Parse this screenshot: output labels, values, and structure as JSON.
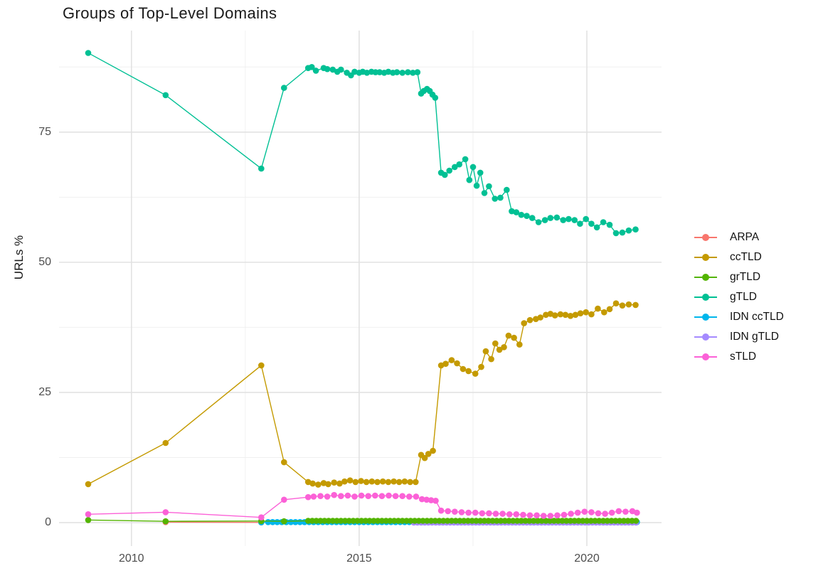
{
  "title": "Groups of Top-Level Domains",
  "legend": {
    "items": [
      {
        "label": "ARPA",
        "color": "#F8766D"
      },
      {
        "label": "ccTLD",
        "color": "#C49A00"
      },
      {
        "label": "grTLD",
        "color": "#53B400"
      },
      {
        "label": "gTLD",
        "color": "#00C094"
      },
      {
        "label": "IDN ccTLD",
        "color": "#00B6EB"
      },
      {
        "label": "IDN gTLD",
        "color": "#A58AFF"
      },
      {
        "label": "sTLD",
        "color": "#FB61D7"
      }
    ]
  },
  "colors": {
    "grid_major": "#E2E2E2",
    "grid_minor": "#F0F0F0",
    "axis_text": "#4d4d4d",
    "title_text": "#1a1a1a"
  },
  "chart_data": {
    "type": "line",
    "title": "Groups of Top-Level Domains",
    "xlabel": "",
    "ylabel": "URLs %",
    "xlim": [
      2008.41,
      2021.64
    ],
    "ylim": [
      -4.5,
      94.5
    ],
    "x_major_ticks": [
      2010,
      2015,
      2020
    ],
    "x_minor_gridlines": [
      2012.5,
      2017.5
    ],
    "y_major_ticks": [
      0,
      25,
      50,
      75
    ],
    "y_minor_gridlines": [
      12.5,
      37.5,
      62.5,
      87.5
    ],
    "grid": true,
    "legend_position": "right",
    "legend_order": [
      "ARPA",
      "ccTLD",
      "grTLD",
      "gTLD",
      "IDN ccTLD",
      "IDN gTLD",
      "sTLD"
    ],
    "series": [
      {
        "name": "ARPA",
        "color": "#F8766D",
        "points": [
          [
            2010.75,
            0.1
          ],
          [
            2012.85,
            0.05
          ]
        ]
      },
      {
        "name": "IDN ccTLD",
        "color": "#00B6EB",
        "points": [
          [
            2012.85,
            0.05
          ]
        ],
        "flat": {
          "from": 2013.0,
          "to": 2021.1,
          "step": 0.1,
          "value": 0.1
        }
      },
      {
        "name": "IDN gTLD",
        "color": "#A58AFF",
        "points": [],
        "flat": {
          "from": 2016.2,
          "to": 2021.1,
          "step": 0.08,
          "value": 0.0
        }
      },
      {
        "name": "grTLD",
        "color": "#53B400",
        "points": [
          [
            2009.05,
            0.5
          ],
          [
            2010.75,
            0.25
          ],
          [
            2012.85,
            0.3
          ],
          [
            2013.35,
            0.25
          ]
        ],
        "flat": {
          "from": 2013.88,
          "to": 2021.1,
          "step": 0.09,
          "value": 0.35
        }
      },
      {
        "name": "gTLD",
        "color": "#00C094",
        "points": [
          [
            2009.05,
            90.2
          ],
          [
            2010.75,
            82.1
          ],
          [
            2012.85,
            68.0
          ],
          [
            2013.35,
            83.5
          ],
          [
            2013.88,
            87.3
          ],
          [
            2013.96,
            87.5
          ],
          [
            2014.05,
            86.8
          ],
          [
            2014.22,
            87.3
          ],
          [
            2014.3,
            87.1
          ],
          [
            2014.42,
            87.0
          ],
          [
            2014.52,
            86.6
          ],
          [
            2014.6,
            87.0
          ],
          [
            2014.73,
            86.4
          ],
          [
            2014.82,
            85.9
          ],
          [
            2014.9,
            86.6
          ],
          [
            2015.0,
            86.4
          ],
          [
            2015.08,
            86.6
          ],
          [
            2015.17,
            86.4
          ],
          [
            2015.27,
            86.6
          ],
          [
            2015.36,
            86.5
          ],
          [
            2015.45,
            86.5
          ],
          [
            2015.55,
            86.4
          ],
          [
            2015.64,
            86.6
          ],
          [
            2015.74,
            86.4
          ],
          [
            2015.83,
            86.5
          ],
          [
            2015.95,
            86.4
          ],
          [
            2016.07,
            86.5
          ],
          [
            2016.18,
            86.4
          ],
          [
            2016.28,
            86.5
          ],
          [
            2016.36,
            82.4
          ],
          [
            2016.42,
            82.9
          ],
          [
            2016.49,
            83.3
          ],
          [
            2016.55,
            82.9
          ],
          [
            2016.61,
            82.2
          ],
          [
            2016.67,
            81.6
          ],
          [
            2016.8,
            67.2
          ],
          [
            2016.88,
            66.8
          ],
          [
            2016.98,
            67.6
          ],
          [
            2017.1,
            68.3
          ],
          [
            2017.2,
            68.8
          ],
          [
            2017.33,
            69.8
          ],
          [
            2017.42,
            65.8
          ],
          [
            2017.5,
            68.3
          ],
          [
            2017.58,
            64.7
          ],
          [
            2017.66,
            67.2
          ],
          [
            2017.75,
            63.3
          ],
          [
            2017.85,
            64.6
          ],
          [
            2017.98,
            62.2
          ],
          [
            2018.1,
            62.4
          ],
          [
            2018.24,
            63.9
          ],
          [
            2018.35,
            59.8
          ],
          [
            2018.45,
            59.6
          ],
          [
            2018.56,
            59.1
          ],
          [
            2018.68,
            58.9
          ],
          [
            2018.8,
            58.5
          ],
          [
            2018.94,
            57.7
          ],
          [
            2019.08,
            58.1
          ],
          [
            2019.2,
            58.5
          ],
          [
            2019.34,
            58.6
          ],
          [
            2019.48,
            58.1
          ],
          [
            2019.6,
            58.3
          ],
          [
            2019.73,
            58.1
          ],
          [
            2019.85,
            57.4
          ],
          [
            2019.98,
            58.3
          ],
          [
            2020.1,
            57.4
          ],
          [
            2020.22,
            56.7
          ],
          [
            2020.36,
            57.7
          ],
          [
            2020.5,
            57.2
          ],
          [
            2020.64,
            55.6
          ],
          [
            2020.78,
            55.7
          ],
          [
            2020.92,
            56.1
          ],
          [
            2021.07,
            56.3
          ]
        ]
      },
      {
        "name": "ccTLD",
        "color": "#C49A00",
        "points": [
          [
            2009.05,
            7.4
          ],
          [
            2010.75,
            15.3
          ],
          [
            2012.85,
            30.2
          ],
          [
            2013.35,
            11.6
          ],
          [
            2013.88,
            7.8
          ],
          [
            2013.98,
            7.5
          ],
          [
            2014.1,
            7.3
          ],
          [
            2014.22,
            7.6
          ],
          [
            2014.32,
            7.4
          ],
          [
            2014.45,
            7.7
          ],
          [
            2014.57,
            7.5
          ],
          [
            2014.68,
            7.9
          ],
          [
            2014.8,
            8.1
          ],
          [
            2014.92,
            7.8
          ],
          [
            2015.04,
            8.0
          ],
          [
            2015.16,
            7.8
          ],
          [
            2015.28,
            7.9
          ],
          [
            2015.4,
            7.8
          ],
          [
            2015.52,
            7.9
          ],
          [
            2015.64,
            7.8
          ],
          [
            2015.76,
            7.9
          ],
          [
            2015.88,
            7.8
          ],
          [
            2016.0,
            7.9
          ],
          [
            2016.12,
            7.8
          ],
          [
            2016.24,
            7.8
          ],
          [
            2016.36,
            13.0
          ],
          [
            2016.44,
            12.4
          ],
          [
            2016.52,
            13.2
          ],
          [
            2016.62,
            13.8
          ],
          [
            2016.8,
            30.2
          ],
          [
            2016.9,
            30.5
          ],
          [
            2017.03,
            31.2
          ],
          [
            2017.15,
            30.6
          ],
          [
            2017.28,
            29.5
          ],
          [
            2017.4,
            29.1
          ],
          [
            2017.55,
            28.6
          ],
          [
            2017.68,
            29.9
          ],
          [
            2017.78,
            32.9
          ],
          [
            2017.9,
            31.4
          ],
          [
            2017.99,
            34.4
          ],
          [
            2018.08,
            33.2
          ],
          [
            2018.18,
            33.7
          ],
          [
            2018.28,
            35.9
          ],
          [
            2018.4,
            35.5
          ],
          [
            2018.52,
            34.2
          ],
          [
            2018.62,
            38.3
          ],
          [
            2018.75,
            38.9
          ],
          [
            2018.88,
            39.1
          ],
          [
            2018.98,
            39.4
          ],
          [
            2019.1,
            39.9
          ],
          [
            2019.2,
            40.1
          ],
          [
            2019.3,
            39.8
          ],
          [
            2019.42,
            40.0
          ],
          [
            2019.53,
            39.9
          ],
          [
            2019.64,
            39.7
          ],
          [
            2019.75,
            39.9
          ],
          [
            2019.86,
            40.2
          ],
          [
            2019.98,
            40.4
          ],
          [
            2020.1,
            40.0
          ],
          [
            2020.24,
            41.1
          ],
          [
            2020.38,
            40.4
          ],
          [
            2020.5,
            41.0
          ],
          [
            2020.64,
            42.1
          ],
          [
            2020.78,
            41.7
          ],
          [
            2020.92,
            41.9
          ],
          [
            2021.07,
            41.8
          ]
        ]
      },
      {
        "name": "sTLD",
        "color": "#FB61D7",
        "points": [
          [
            2009.05,
            1.6
          ],
          [
            2010.75,
            2.0
          ],
          [
            2012.85,
            1.0
          ],
          [
            2013.35,
            4.4
          ],
          [
            2013.88,
            4.9
          ],
          [
            2014.0,
            5.0
          ],
          [
            2014.15,
            5.1
          ],
          [
            2014.3,
            5.0
          ],
          [
            2014.45,
            5.3
          ],
          [
            2014.6,
            5.1
          ],
          [
            2014.75,
            5.2
          ],
          [
            2014.9,
            5.0
          ],
          [
            2015.05,
            5.2
          ],
          [
            2015.2,
            5.1
          ],
          [
            2015.35,
            5.2
          ],
          [
            2015.5,
            5.1
          ],
          [
            2015.65,
            5.2
          ],
          [
            2015.8,
            5.1
          ],
          [
            2015.95,
            5.1
          ],
          [
            2016.1,
            5.0
          ],
          [
            2016.25,
            5.0
          ],
          [
            2016.38,
            4.5
          ],
          [
            2016.48,
            4.4
          ],
          [
            2016.58,
            4.3
          ],
          [
            2016.68,
            4.2
          ],
          [
            2016.8,
            2.3
          ],
          [
            2016.95,
            2.2
          ],
          [
            2017.1,
            2.1
          ],
          [
            2017.25,
            2.0
          ],
          [
            2017.4,
            1.9
          ],
          [
            2017.55,
            1.9
          ],
          [
            2017.7,
            1.8
          ],
          [
            2017.85,
            1.8
          ],
          [
            2018.0,
            1.7
          ],
          [
            2018.15,
            1.7
          ],
          [
            2018.3,
            1.6
          ],
          [
            2018.45,
            1.6
          ],
          [
            2018.6,
            1.5
          ],
          [
            2018.75,
            1.4
          ],
          [
            2018.9,
            1.4
          ],
          [
            2019.05,
            1.3
          ],
          [
            2019.2,
            1.3
          ],
          [
            2019.35,
            1.4
          ],
          [
            2019.5,
            1.5
          ],
          [
            2019.65,
            1.7
          ],
          [
            2019.8,
            1.9
          ],
          [
            2019.95,
            2.1
          ],
          [
            2020.1,
            2.0
          ],
          [
            2020.25,
            1.8
          ],
          [
            2020.4,
            1.7
          ],
          [
            2020.55,
            1.9
          ],
          [
            2020.7,
            2.2
          ],
          [
            2020.85,
            2.1
          ],
          [
            2021.0,
            2.2
          ],
          [
            2021.1,
            1.9
          ]
        ]
      }
    ]
  }
}
